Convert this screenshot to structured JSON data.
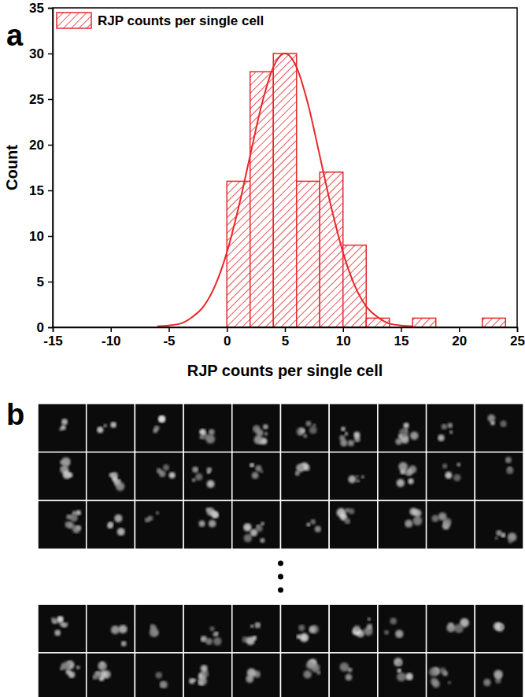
{
  "chart_data": {
    "type": "histogram",
    "x_label": "RJP counts per single cell",
    "y_label": "Count",
    "legend": "upper left",
    "xlim": [
      -15,
      25
    ],
    "xticks": [
      -15,
      -10,
      -5,
      0,
      5,
      10,
      15,
      20,
      25
    ],
    "ylim": [
      0,
      35
    ],
    "yticks": [
      0,
      5,
      10,
      15,
      20,
      25,
      30,
      35
    ],
    "series": [
      {
        "name": "RJP counts per single cell",
        "type": "bar",
        "color": "#e8282b",
        "bins": [
          0,
          2,
          4,
          6,
          8,
          10,
          12,
          14,
          16,
          18,
          20,
          22,
          24
        ],
        "values": [
          16,
          28,
          30,
          16,
          17,
          9,
          1,
          0,
          1,
          0,
          0,
          1
        ]
      },
      {
        "type": "line",
        "color": "#e8282b",
        "x": [
          -6,
          -5,
          -4,
          -3,
          -2,
          -1,
          0,
          1,
          2,
          3,
          4,
          5,
          6,
          7,
          8,
          9,
          10,
          11,
          12,
          13,
          14,
          15,
          16
        ],
        "values": [
          0.1,
          0.2,
          0.4,
          1.1,
          2.3,
          4.6,
          8.2,
          13.1,
          18.8,
          24.4,
          28.5,
          30,
          28.5,
          24.4,
          18.8,
          13.1,
          8.2,
          4.6,
          2.3,
          1.1,
          0.4,
          0.2,
          0.1
        ]
      }
    ]
  },
  "figure": {
    "panel_labels": [
      "a",
      "b"
    ],
    "image_grid": {
      "columns": 10,
      "rows_before_gap": 3,
      "rows_after_gap": 2
    }
  }
}
